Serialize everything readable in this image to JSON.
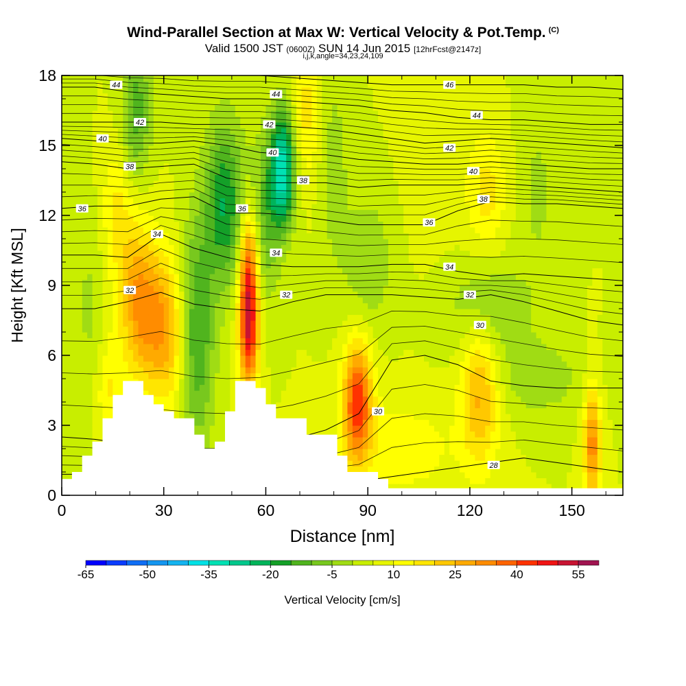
{
  "header": {
    "title": "Wind-Parallel Section at Max W: Vertical Velocity & Pot.Temp.",
    "copyright": "(C)",
    "valid_prefix": "Valid 1500 JST",
    "valid_utc": "(0600Z)",
    "valid_date": "SUN 14 Jun 2015",
    "forecast": "[12hrFcst@2147z]",
    "indices": "i,j,k,angle=34,23,24,109"
  },
  "chart_data": {
    "type": "heatmap",
    "xlabel": "Distance [nm]",
    "ylabel": "Height [Kft MSL]",
    "xlim": [
      0,
      165
    ],
    "ylim": [
      0,
      18
    ],
    "x_ticks": [
      0,
      30,
      60,
      90,
      120,
      150
    ],
    "y_ticks": [
      0,
      3,
      6,
      9,
      12,
      15,
      18
    ],
    "colorbar": {
      "label": "Vertical Velocity [cm/s]",
      "tick_labels": [
        "-65",
        "-50",
        "-35",
        "-20",
        "-5",
        "10",
        "25",
        "40",
        "55"
      ],
      "tick_values": [
        -65,
        -50,
        -35,
        -20,
        -5,
        10,
        25,
        40,
        55
      ],
      "bin_edges": [
        -65,
        -60,
        -55,
        -50,
        -45,
        -40,
        -35,
        -30,
        -25,
        -20,
        -15,
        -10,
        -5,
        0,
        5,
        10,
        15,
        20,
        25,
        30,
        35,
        40,
        45,
        50,
        55,
        60
      ],
      "colors": [
        "#0000ff",
        "#0a3cff",
        "#0f6ef5",
        "#1496f0",
        "#14b4f0",
        "#00e1e6",
        "#00e1b4",
        "#00c88c",
        "#00b45a",
        "#14a028",
        "#50b41e",
        "#78c81e",
        "#a0dc14",
        "#c8ee00",
        "#e6f500",
        "#ffff00",
        "#ffe600",
        "#ffc800",
        "#ffaa00",
        "#ff8c00",
        "#ff6400",
        "#ff3200",
        "#f01414",
        "#c81432",
        "#a01450",
        "#781478"
      ]
    },
    "terrain_kft": [
      [
        0,
        0.7
      ],
      [
        3,
        0.7
      ],
      [
        3,
        1.0
      ],
      [
        6,
        1.0
      ],
      [
        6,
        1.7
      ],
      [
        9,
        1.7
      ],
      [
        9,
        2.3
      ],
      [
        12,
        2.3
      ],
      [
        12,
        3.3
      ],
      [
        15,
        3.3
      ],
      [
        15,
        4.3
      ],
      [
        18,
        4.3
      ],
      [
        18,
        4.9
      ],
      [
        24,
        4.9
      ],
      [
        24,
        4.3
      ],
      [
        27,
        4.3
      ],
      [
        27,
        3.9
      ],
      [
        30,
        3.9
      ],
      [
        30,
        3.6
      ],
      [
        33,
        3.6
      ],
      [
        33,
        3.3
      ],
      [
        39,
        3.3
      ],
      [
        39,
        2.6
      ],
      [
        42,
        2.6
      ],
      [
        42,
        2.0
      ],
      [
        45,
        2.0
      ],
      [
        45,
        2.3
      ],
      [
        48,
        2.3
      ],
      [
        48,
        3.6
      ],
      [
        51,
        3.6
      ],
      [
        51,
        4.9
      ],
      [
        54,
        4.9
      ],
      [
        54,
        4.9
      ],
      [
        57,
        4.9
      ],
      [
        57,
        4.6
      ],
      [
        60,
        4.6
      ],
      [
        60,
        3.9
      ],
      [
        63,
        3.9
      ],
      [
        63,
        3.3
      ],
      [
        72,
        3.3
      ],
      [
        72,
        2.6
      ],
      [
        81,
        2.6
      ],
      [
        81,
        1.7
      ],
      [
        84,
        1.7
      ],
      [
        84,
        1.0
      ],
      [
        93,
        1.0
      ],
      [
        93,
        0.7
      ],
      [
        96,
        0.7
      ],
      [
        96,
        0.3
      ],
      [
        165,
        0.3
      ]
    ],
    "w_cells_cm_s": [
      {
        "x": 26,
        "z": 7.5,
        "sx": 5,
        "sz": 2.2,
        "w": 25
      },
      {
        "x": 32,
        "z": 6.5,
        "sx": 3,
        "sz": 2.2,
        "w": 10
      },
      {
        "x": 21,
        "z": 9.5,
        "sx": 4,
        "sz": 2,
        "w": 12
      },
      {
        "x": 14,
        "z": 4.5,
        "sx": 3,
        "sz": 1.5,
        "w": 10
      },
      {
        "x": 55,
        "z": 7.5,
        "sx": 2,
        "sz": 2.0,
        "w": 48
      },
      {
        "x": 55,
        "z": 10.5,
        "sx": 2,
        "sz": 1.6,
        "w": 18
      },
      {
        "x": 87,
        "z": 4.0,
        "sx": 3,
        "sz": 1.8,
        "w": 38
      },
      {
        "x": 123,
        "z": 4.5,
        "sx": 4,
        "sz": 2.2,
        "w": 22
      },
      {
        "x": 156,
        "z": 2.2,
        "sx": 1.8,
        "sz": 1.8,
        "w": 28
      },
      {
        "x": 40,
        "z": 7.0,
        "sx": 3.5,
        "sz": 3.5,
        "w": -20
      },
      {
        "x": 48,
        "z": 12.5,
        "sx": 4,
        "sz": 2.5,
        "w": -25
      },
      {
        "x": 65,
        "z": 14.0,
        "sx": 2.5,
        "sz": 1.8,
        "w": -38
      },
      {
        "x": 60,
        "z": 12.0,
        "sx": 3,
        "sz": 2.5,
        "w": -15
      },
      {
        "x": 22,
        "z": 16.5,
        "sx": 3,
        "sz": 2,
        "w": -18
      },
      {
        "x": 90,
        "z": 10.0,
        "sx": 5,
        "sz": 2,
        "w": -10
      },
      {
        "x": 125,
        "z": 8.0,
        "sx": 8,
        "sz": 1.5,
        "w": -12
      },
      {
        "x": 140,
        "z": 5.0,
        "sx": 10,
        "sz": 1.2,
        "w": -8
      },
      {
        "x": 16,
        "z": 12.5,
        "sx": 3,
        "sz": 1.8,
        "w": 10
      },
      {
        "x": 72,
        "z": 16.5,
        "sx": 3,
        "sz": 2,
        "w": 12
      },
      {
        "x": 125,
        "z": 13.0,
        "sx": 4,
        "sz": 1.8,
        "w": 12
      },
      {
        "x": 110,
        "z": 15.0,
        "sx": 6,
        "sz": 3,
        "w": 4
      },
      {
        "x": 80,
        "z": 14.0,
        "sx": 3,
        "sz": 3,
        "w": -8
      },
      {
        "x": 8,
        "z": 8.0,
        "sx": 3,
        "sz": 3,
        "w": -6
      },
      {
        "x": 140,
        "z": 13.0,
        "sx": 4,
        "sz": 3,
        "w": -6
      },
      {
        "x": 100,
        "z": 2.0,
        "sx": 12,
        "sz": 1.5,
        "w": 8
      }
    ],
    "theta_isentropes": [
      {
        "label": "28",
        "z": [
          0.9,
          0.9,
          0.9,
          0.8,
          0.8,
          0.7,
          0.7,
          0.6,
          0.6,
          0.6,
          0.8,
          1.0,
          1.2,
          1.4,
          1.6,
          1.4,
          1.2,
          1.0
        ],
        "label_x": 127
      },
      {
        "label": "30",
        "z": [
          2.5,
          2.4,
          2.2,
          2.0,
          2.0,
          2.0,
          2.2,
          2.4,
          2.8,
          3.5,
          5.8,
          6.0,
          5.6,
          4.9,
          4.7,
          4.6,
          4.6,
          4.6
        ],
        "label_x": 93
      },
      {
        "label": "32",
        "z": [
          8.0,
          8.0,
          8.3,
          8.7,
          8.2,
          8.0,
          7.9,
          8.3,
          8.6,
          8.6,
          8.6,
          8.5,
          8.4,
          8.6,
          8.3,
          7.9,
          7.5,
          7.3
        ],
        "label_x": 64
      },
      {
        "label": "34",
        "z": [
          10.3,
          10.3,
          10.2,
          11.2,
          10.6,
          10.2,
          9.9,
          9.8,
          9.8,
          9.8,
          9.9,
          9.9,
          9.6,
          9.4,
          9.5,
          9.4,
          9.3,
          9.2
        ],
        "label_x": 114
      },
      {
        "label": "36",
        "z": [
          12.3,
          12.4,
          12.4,
          12.7,
          12.8,
          12.1,
          12.1,
          12.0,
          11.8,
          11.6,
          11.6,
          11.6,
          12.2,
          12.6,
          12.5,
          12.5,
          12.4,
          12.3
        ],
        "label_x": 108
      },
      {
        "label": "38",
        "z": [
          14.3,
          14.2,
          14.0,
          14.1,
          14.2,
          13.6,
          13.4,
          13.4,
          13.4,
          13.2,
          13.3,
          13.3,
          13.3,
          13.4,
          13.3,
          13.2,
          13.1,
          13.0
        ],
        "label_x": 71
      },
      {
        "label": "40",
        "z": [
          15.3,
          15.2,
          15.1,
          15.1,
          15.2,
          15.0,
          14.7,
          14.6,
          14.6,
          14.4,
          14.3,
          14.2,
          14.2,
          14.3,
          14.2,
          14.1,
          14.0,
          14.0
        ],
        "label_x": 125
      },
      {
        "label": "42",
        "z": [
          16.0,
          16.0,
          16.0,
          16.0,
          15.9,
          15.9,
          15.9,
          15.8,
          15.7,
          15.5,
          15.3,
          15.1,
          15.2,
          15.3,
          15.2,
          15.1,
          15.0,
          14.9
        ],
        "label_x": 114
      },
      {
        "label": "44",
        "z": [
          17.5,
          17.5,
          17.3,
          17.2,
          17.1,
          17.0,
          17.0,
          16.9,
          16.8,
          16.7,
          16.5,
          16.4,
          16.2,
          16.1,
          16.1,
          16.0,
          15.9,
          15.9
        ],
        "label_x": 63
      },
      {
        "label": "46",
        "z": [
          18.2,
          18.2,
          18.1,
          18.1,
          18.0,
          18.0,
          18.0,
          17.9,
          17.8,
          17.7,
          17.6,
          17.6,
          17.6,
          17.6,
          17.6,
          17.5,
          17.5,
          17.4
        ],
        "label_x": 114
      }
    ],
    "contour_labels": [
      {
        "text": "44",
        "x": 16,
        "z": 17.6
      },
      {
        "text": "44",
        "x": 63,
        "z": 17.2
      },
      {
        "text": "46",
        "x": 114,
        "z": 17.6
      },
      {
        "text": "44",
        "x": 122,
        "z": 16.3
      },
      {
        "text": "42",
        "x": 23,
        "z": 16.0
      },
      {
        "text": "42",
        "x": 61,
        "z": 15.9
      },
      {
        "text": "42",
        "x": 114,
        "z": 14.9
      },
      {
        "text": "40",
        "x": 12,
        "z": 15.3
      },
      {
        "text": "40",
        "x": 62,
        "z": 14.7
      },
      {
        "text": "40",
        "x": 121,
        "z": 13.9
      },
      {
        "text": "38",
        "x": 20,
        "z": 14.1
      },
      {
        "text": "38",
        "x": 71,
        "z": 13.5
      },
      {
        "text": "38",
        "x": 124,
        "z": 12.7
      },
      {
        "text": "36",
        "x": 6,
        "z": 12.3
      },
      {
        "text": "36",
        "x": 53,
        "z": 12.3
      },
      {
        "text": "36",
        "x": 108,
        "z": 11.7
      },
      {
        "text": "34",
        "x": 28,
        "z": 11.2
      },
      {
        "text": "34",
        "x": 63,
        "z": 10.4
      },
      {
        "text": "34",
        "x": 114,
        "z": 9.8
      },
      {
        "text": "32",
        "x": 20,
        "z": 8.8
      },
      {
        "text": "32",
        "x": 66,
        "z": 8.6
      },
      {
        "text": "32",
        "x": 120,
        "z": 8.6
      },
      {
        "text": "30",
        "x": 123,
        "z": 7.3
      },
      {
        "text": "30",
        "x": 93,
        "z": 3.6
      },
      {
        "text": "28",
        "x": 127,
        "z": 1.3
      }
    ]
  }
}
